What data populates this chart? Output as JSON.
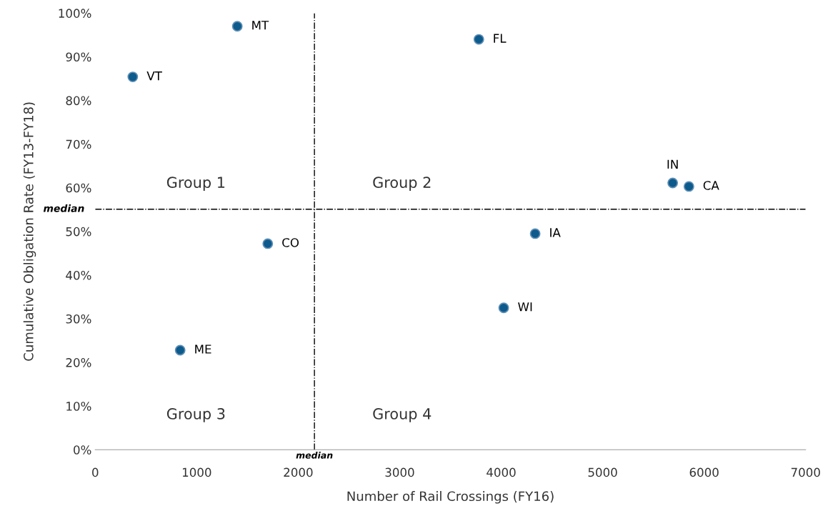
{
  "chart_data": {
    "type": "scatter",
    "xlabel": "Number of Rail Crossings (FY16)",
    "ylabel": "Cumulative Obligation Rate (FY13-FY18)",
    "x": [
      370,
      1400,
      3780,
      5690,
      5850,
      4335,
      4025,
      1700,
      837
    ],
    "series": [
      {
        "color": "#0d5a8c",
        "values": [
          85.4,
          97,
          94,
          61.1,
          60.3,
          49.5,
          32.5,
          47.2,
          22.8
        ]
      }
    ],
    "marker": "circle",
    "grid": false,
    "xlim": [
      0,
      7000
    ],
    "xticks": [
      0,
      1000,
      2000,
      3000,
      4000,
      5000,
      6000,
      7000
    ],
    "ylim": [
      0,
      100
    ],
    "yticks": [
      {
        "value": 0,
        "label": "0%"
      },
      {
        "value": 10,
        "label": "10%"
      },
      {
        "value": 20,
        "label": "20%"
      },
      {
        "value": 30,
        "label": "30%"
      },
      {
        "value": 40,
        "label": "40%"
      },
      {
        "value": 50,
        "label": "50%"
      },
      {
        "value": 60,
        "label": "60%"
      },
      {
        "value": 70,
        "label": "70%"
      },
      {
        "value": 80,
        "label": "80%"
      },
      {
        "value": 90,
        "label": "90%"
      },
      {
        "value": 100,
        "label": "100%"
      }
    ],
    "ref_lines": [
      {
        "axis": "x",
        "value": 2160,
        "label": "median",
        "line_style": "dashdot",
        "color": "#000000"
      },
      {
        "axis": "y",
        "value": 55.1,
        "label": "median",
        "line_style": "dashdot",
        "color": "#000000"
      }
    ],
    "annotations": [
      {
        "text": "VT",
        "x": 370,
        "y": 85.4
      },
      {
        "text": "MT",
        "x": 1400,
        "y": 97
      },
      {
        "text": "FL",
        "x": 3780,
        "y": 94
      },
      {
        "text": "IN",
        "x": 5690,
        "y": 61.1
      },
      {
        "text": "CA",
        "x": 5850,
        "y": 60.3
      },
      {
        "text": "IA",
        "x": 4335,
        "y": 49.5
      },
      {
        "text": "WI",
        "x": 4025,
        "y": 32.5
      },
      {
        "text": "CO",
        "x": 1700,
        "y": 47.2
      },
      {
        "text": "ME",
        "x": 837,
        "y": 22.8
      },
      "Group 1",
      "Group 2",
      "Group 3",
      "Group 4"
    ]
  }
}
